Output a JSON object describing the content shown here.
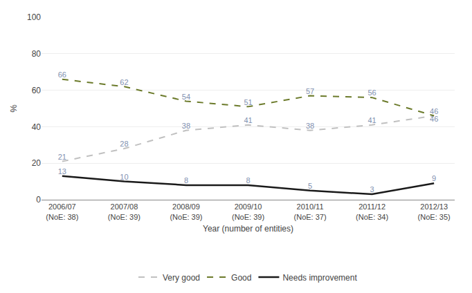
{
  "chart_data": {
    "type": "line",
    "xlabel": "Year (number of entities)",
    "ylabel": "%",
    "categories": [
      "2006/07\n(NoE: 38)",
      "2007/08\n(NoE: 39)",
      "2008/09\n(NoE: 39)",
      "2009/10\n(NoE: 39)",
      "2010/11\n(NoE: 37)",
      "2011/12\n(NoE: 34)",
      "2012/13\n(NoE: 35)"
    ],
    "series": [
      {
        "name": "Very good",
        "color": "#c0c0c0",
        "line_style": "dashed",
        "values": [
          21,
          28,
          38,
          41,
          38,
          41,
          46
        ]
      },
      {
        "name": "Good",
        "color": "#6b7a2a",
        "line_style": "dashed",
        "values": [
          66,
          62,
          54,
          51,
          57,
          56,
          46
        ]
      },
      {
        "name": "Needs improvement",
        "color": "#1a1a1a",
        "line_style": "solid",
        "values": [
          13,
          10,
          8,
          8,
          5,
          3,
          9
        ]
      }
    ],
    "ylim": [
      0,
      100
    ],
    "yticks": [
      0,
      20,
      40,
      60,
      80,
      100
    ],
    "grid": true,
    "legend": "bottom",
    "data_labels": true
  }
}
